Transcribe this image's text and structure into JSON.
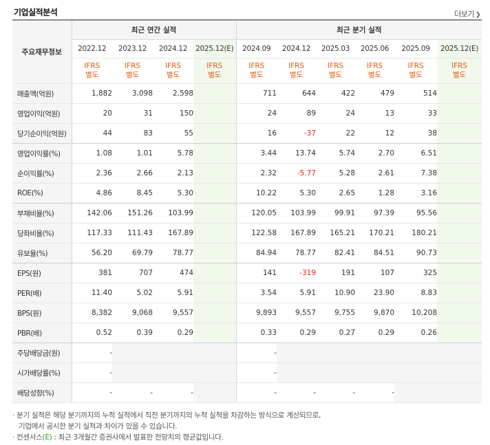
{
  "title": "기업실적분석",
  "more_label": "더보기",
  "more_icon": "chevron-right-icon",
  "header": {
    "corner": "주요재무정보",
    "annual": "최근 연간 실적",
    "quarter": "최근 분기 실적",
    "periods": [
      "2022.12",
      "2023.12",
      "2024.12",
      "2025.12(E)",
      "2024.09",
      "2024.12",
      "2025.03",
      "2025.06",
      "2025.09",
      "2025.12(E)"
    ],
    "ifrs_line1": "IFRS",
    "ifrs_line2": "별도"
  },
  "rows": [
    {
      "label": "매출액(억원)",
      "values": [
        "1,882",
        "3,098",
        "2,598",
        "",
        "711",
        "644",
        "422",
        "479",
        "514",
        ""
      ]
    },
    {
      "label": "영업이익(억원)",
      "values": [
        "20",
        "31",
        "150",
        "",
        "24",
        "89",
        "24",
        "13",
        "33",
        ""
      ]
    },
    {
      "label": "당기순이익(억원)",
      "values": [
        "44",
        "83",
        "55",
        "",
        "16",
        "-37",
        "22",
        "12",
        "38",
        ""
      ]
    },
    {
      "label": "영업이익률(%)",
      "values": [
        "1.08",
        "1.01",
        "5.78",
        "",
        "3.44",
        "13.74",
        "5.74",
        "2.70",
        "6.51",
        ""
      ]
    },
    {
      "label": "순이익률(%)",
      "values": [
        "2.36",
        "2.66",
        "2.13",
        "",
        "2.32",
        "-5.77",
        "5.28",
        "2.61",
        "7.38",
        ""
      ]
    },
    {
      "label": "ROE(%)",
      "values": [
        "4.86",
        "8.45",
        "5.30",
        "",
        "10.22",
        "5.30",
        "2.65",
        "1.28",
        "3.16",
        ""
      ]
    },
    {
      "label": "부채비율(%)",
      "values": [
        "142.06",
        "151.26",
        "103.99",
        "",
        "120.05",
        "103.99",
        "99.91",
        "97.39",
        "95.56",
        ""
      ]
    },
    {
      "label": "당좌비율(%)",
      "values": [
        "117.33",
        "111.43",
        "167.89",
        "",
        "122.58",
        "167.89",
        "165.21",
        "170.21",
        "180.21",
        ""
      ]
    },
    {
      "label": "유보율(%)",
      "values": [
        "56.20",
        "69.79",
        "78.77",
        "",
        "84.94",
        "78.77",
        "82.41",
        "84.51",
        "90.73",
        ""
      ]
    },
    {
      "label": "EPS(원)",
      "values": [
        "381",
        "707",
        "474",
        "",
        "141",
        "-319",
        "191",
        "107",
        "325",
        ""
      ]
    },
    {
      "label": "PER(배)",
      "values": [
        "11.40",
        "5.02",
        "5.91",
        "",
        "3.54",
        "5.91",
        "10.90",
        "23.90",
        "8.83",
        ""
      ]
    },
    {
      "label": "BPS(원)",
      "values": [
        "8,382",
        "9,068",
        "9,557",
        "",
        "9,893",
        "9,557",
        "9,755",
        "9,870",
        "10,208",
        ""
      ]
    },
    {
      "label": "PBR(배)",
      "values": [
        "0.52",
        "0.39",
        "0.29",
        "",
        "0.33",
        "0.29",
        "0.27",
        "0.29",
        "0.26",
        ""
      ]
    },
    {
      "label": "주당배당금(원)",
      "values": [
        "-",
        "",
        "",
        "",
        "-",
        "",
        "",
        "",
        "",
        ""
      ]
    },
    {
      "label": "시가배당률(%)",
      "values": [
        "-",
        "",
        "",
        "",
        "-",
        "",
        "",
        "",
        "",
        ""
      ]
    },
    {
      "label": "배당성향(%)",
      "values": [
        "-",
        "-",
        "-",
        "",
        "-",
        "-",
        "-",
        "-",
        "",
        ""
      ]
    }
  ],
  "notes": {
    "line1": "분기 실적은 해당 분기까지의 누적 실적에서 직전 분기까지의 누적 실적을 차감하는 방식으로 계산되므로,",
    "line2": "기업에서 공시한 분기 실적과 차이가 있을 수 있습니다.",
    "line3_prefix": "컨센서스",
    "line3_em": "(E)",
    "line3_suffix": " : 최근 3개월간 증권사에서 발표한 전망치의 평균값입니다."
  }
}
